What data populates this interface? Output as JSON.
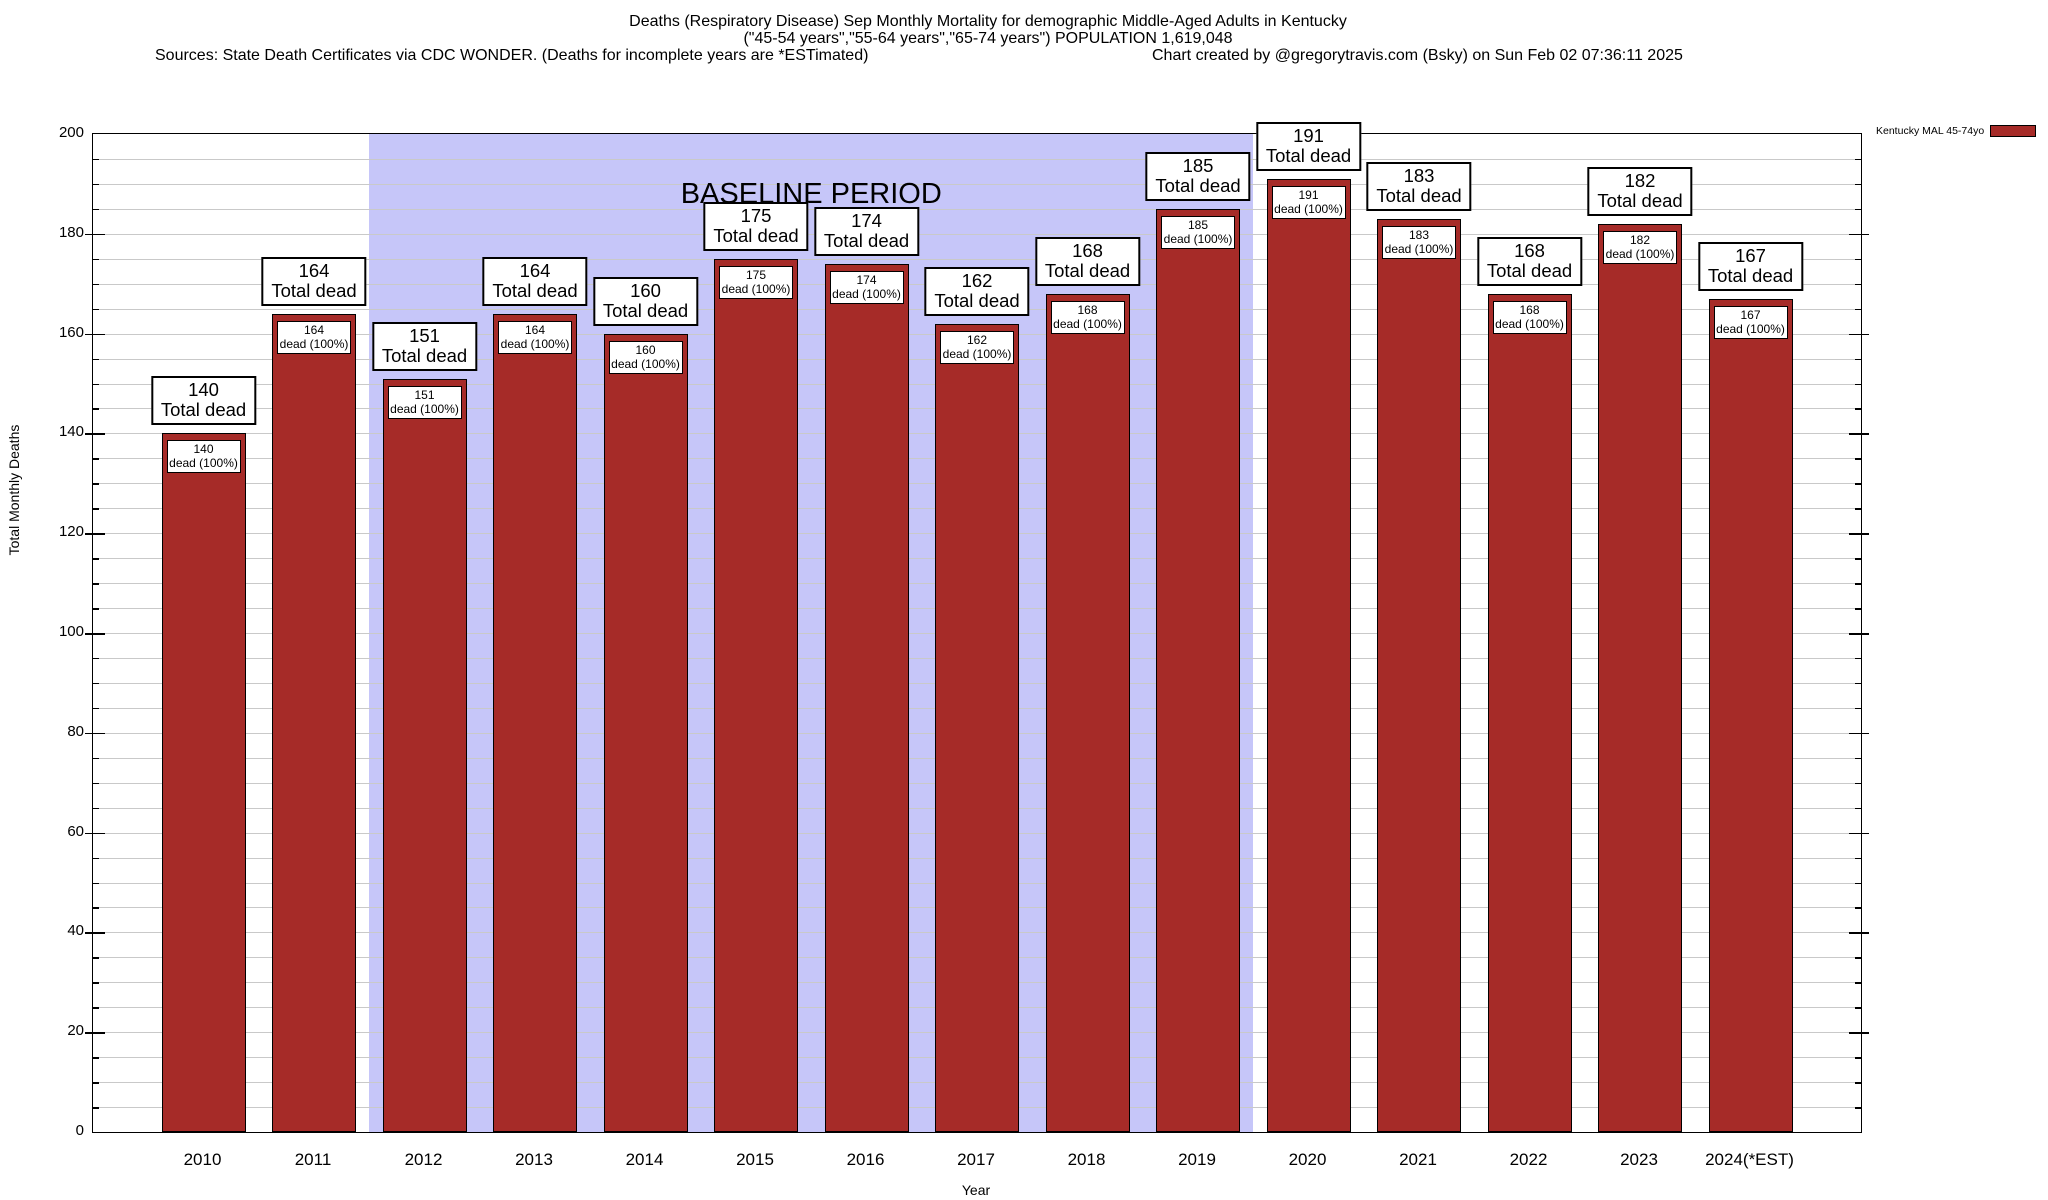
{
  "header": {
    "title_line1": "Deaths (Respiratory Disease) Sep Monthly Mortality for demographic Middle-Aged Adults in Kentucky",
    "title_line2": "(\"45-54 years\",\"55-64 years\",\"65-74 years\") POPULATION 1,619,048",
    "sources": "Sources: State Death Certificates via CDC WONDER. (Deaths for incomplete years are *ESTimated)",
    "credit": "Chart created by @gregorytravis.com (Bsky) on Sun Feb 02 07:36:11 2025"
  },
  "legend": {
    "label": "Kentucky MAL 45-74yo",
    "color": "#a62b28",
    "position": "top-right"
  },
  "chart_data": {
    "type": "bar",
    "title": "Deaths (Respiratory Disease) Sep Monthly Mortality for demographic Middle-Aged Adults in Kentucky",
    "subtitle": "(\"45-54 years\",\"55-64 years\",\"65-74 years\") POPULATION 1,619,048",
    "series_name": "Kentucky MAL 45-74yo",
    "categories": [
      "2010",
      "2011",
      "2012",
      "2013",
      "2014",
      "2015",
      "2016",
      "2017",
      "2018",
      "2019",
      "2020",
      "2021",
      "2022",
      "2023",
      "2024(*EST)"
    ],
    "values": [
      140,
      164,
      151,
      164,
      160,
      175,
      174,
      162,
      168,
      185,
      191,
      183,
      168,
      182,
      167
    ],
    "bar_label_top_suffix": "Total dead",
    "bar_label_inner_suffix": "dead (100%)",
    "xlabel": "Year",
    "ylabel": "Total Monthly Deaths",
    "ylim": [
      0,
      200
    ],
    "yticks": [
      0,
      20,
      40,
      60,
      80,
      100,
      120,
      140,
      160,
      180,
      200
    ],
    "ytick_interval": 20,
    "minor_grid_interval": 5,
    "grid": true,
    "bar_color": "#a62b28",
    "baseline": {
      "label": "BASELINE PERIOD",
      "start_category": "2012",
      "end_category": "2019",
      "color": "#c6c6f9"
    }
  }
}
